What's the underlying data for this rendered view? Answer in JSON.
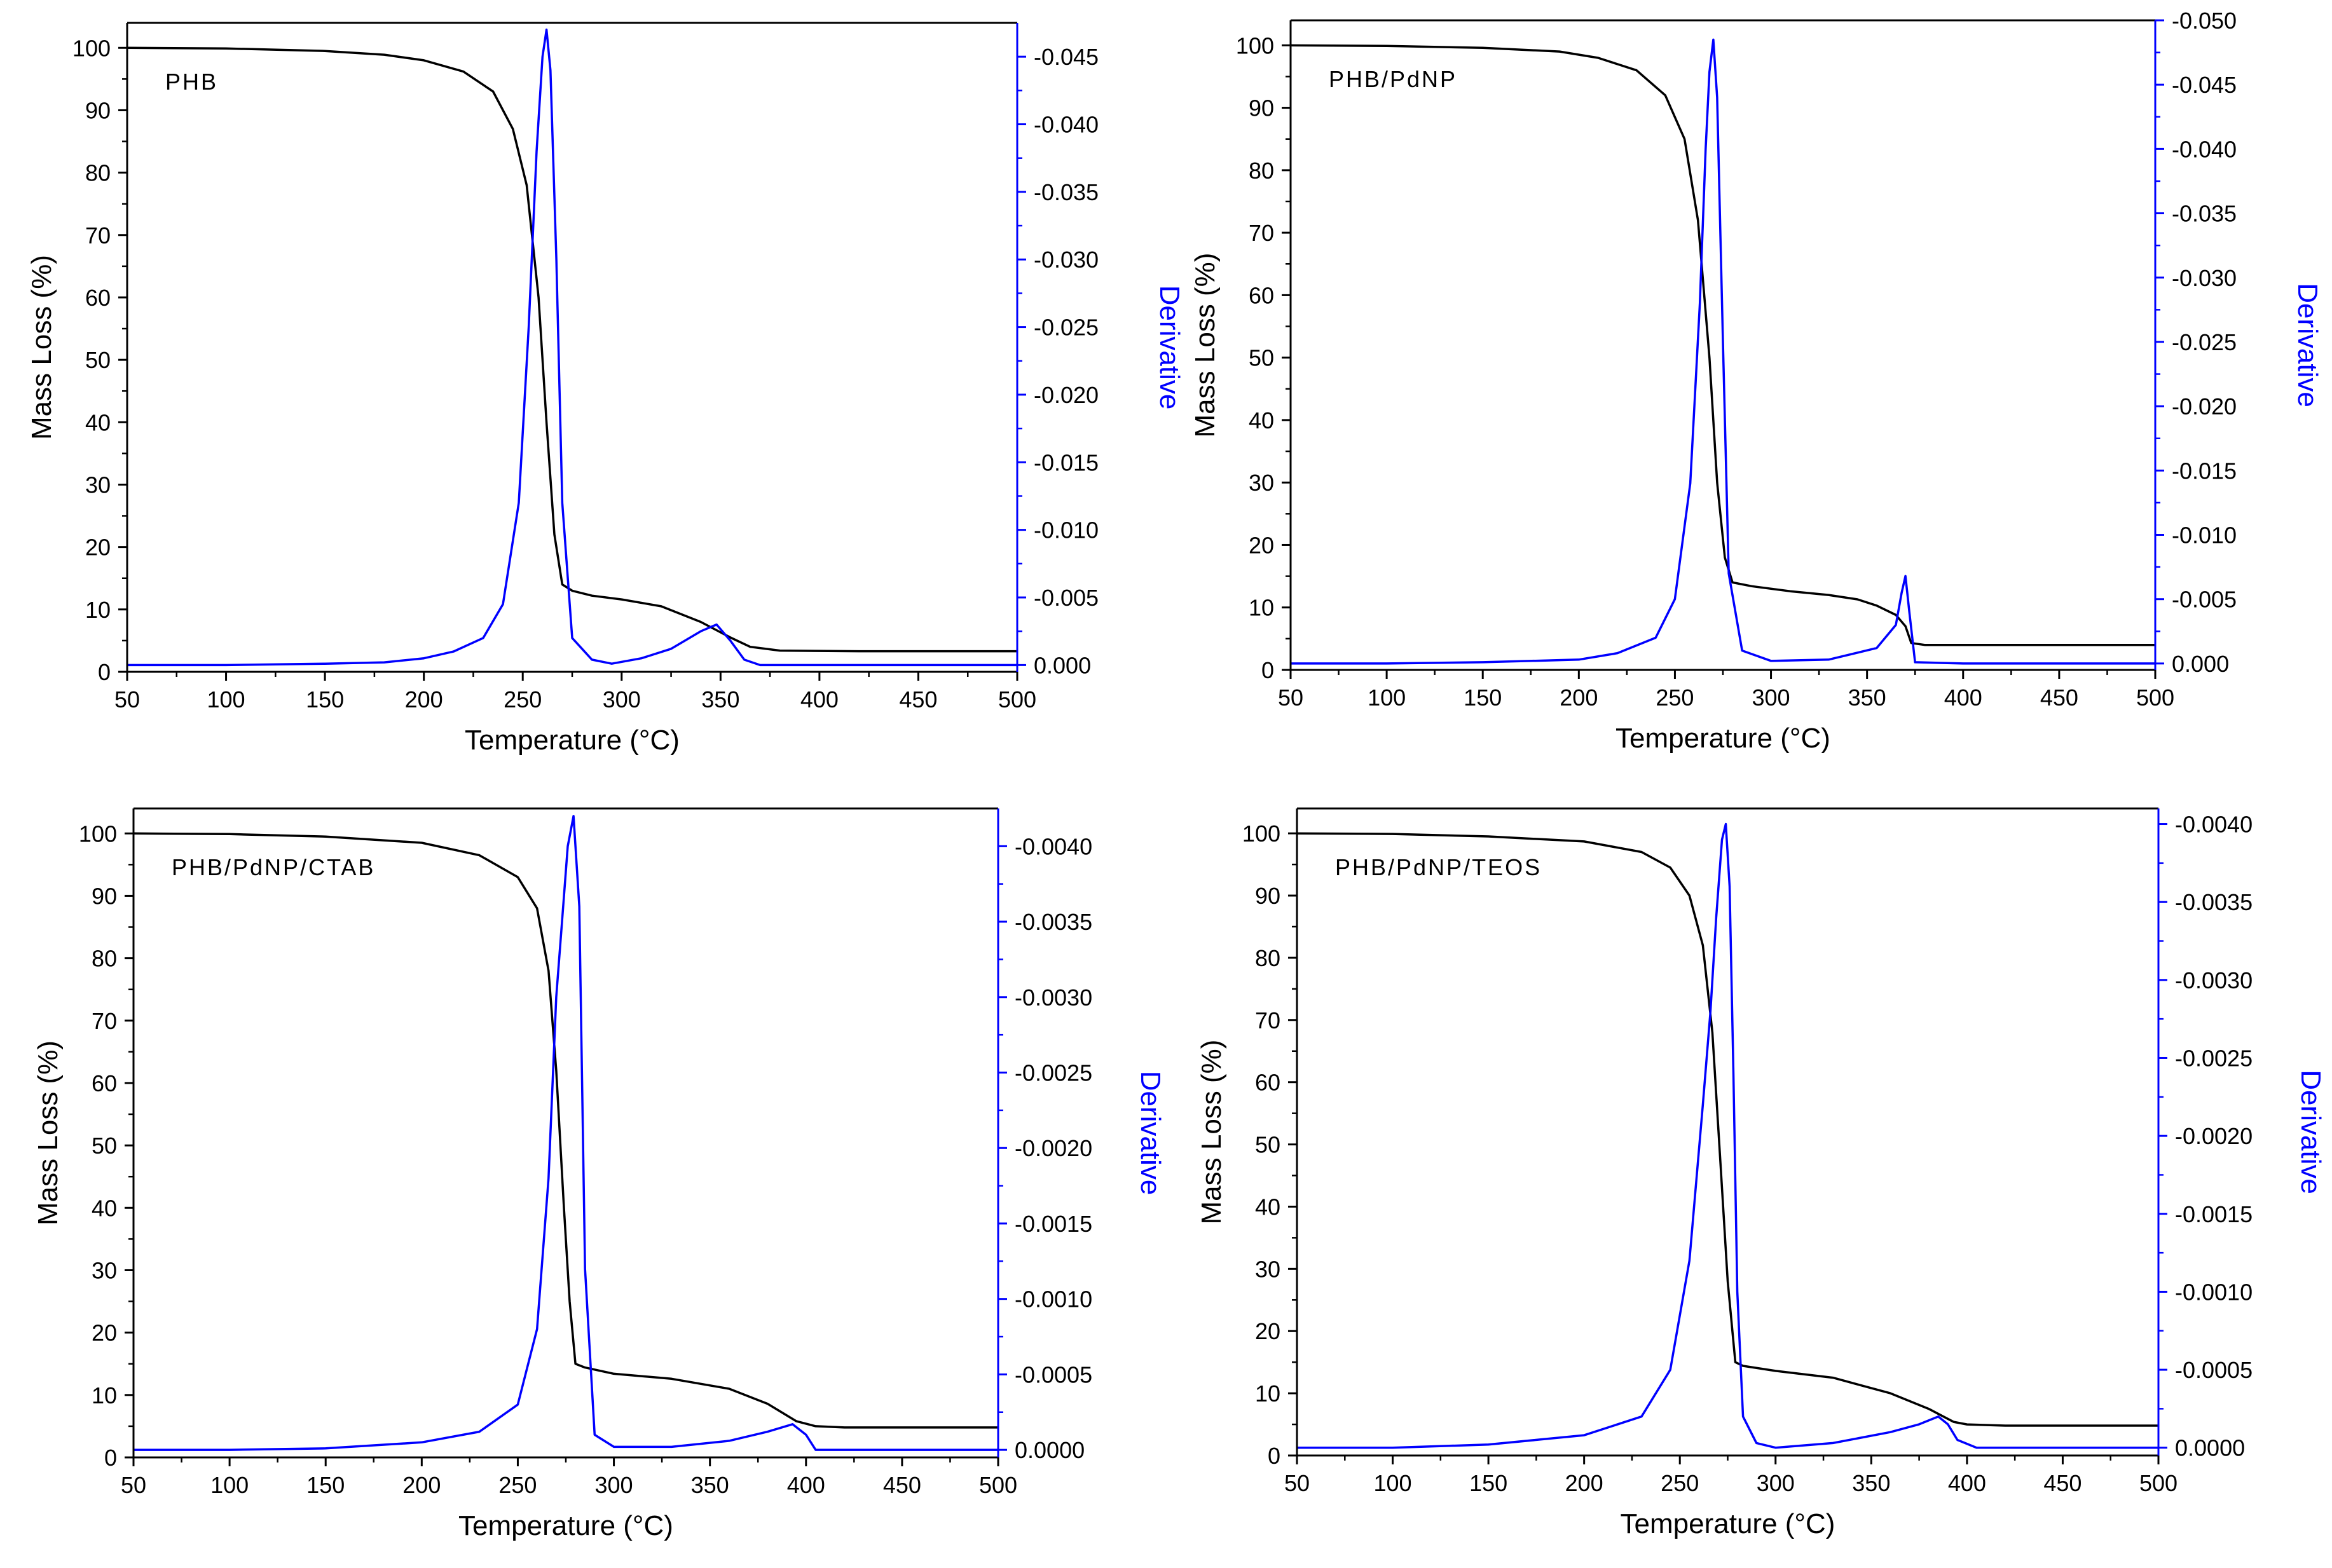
{
  "figure": {
    "colors": {
      "tg": "#000000",
      "dtg": "#0000ff",
      "axis": "#000000",
      "right_axis": "#0000ff"
    }
  },
  "chart_data": [
    {
      "type": "line",
      "label": "PHB",
      "xlabel": "Temperature (°C)",
      "ylabel": "Mass Loss (%)",
      "y2label": "Derivative",
      "xlim": [
        50,
        500
      ],
      "ylim": [
        0,
        104
      ],
      "y2lim": [
        0.0005,
        -0.0475
      ],
      "x_ticks": [
        50,
        100,
        150,
        200,
        250,
        300,
        350,
        400,
        450,
        500
      ],
      "y_ticks": [
        0,
        10,
        20,
        30,
        40,
        50,
        60,
        70,
        80,
        90,
        100
      ],
      "y2_ticks": [
        0.0,
        -0.005,
        -0.01,
        -0.015,
        -0.02,
        -0.025,
        -0.03,
        -0.035,
        -0.04,
        -0.045
      ],
      "y2_tick_labels": [
        "0.000",
        "-0.005",
        "-0.010",
        "-0.015",
        "-0.020",
        "-0.025",
        "-0.030",
        "-0.035",
        "-0.040",
        "-0.045"
      ],
      "grid": false,
      "series": [
        {
          "axis": "left",
          "color": "#000000",
          "x": [
            50,
            100,
            150,
            180,
            200,
            220,
            235,
            245,
            252,
            258,
            262,
            266,
            270,
            275,
            285,
            300,
            320,
            340,
            355,
            365,
            380,
            420,
            500
          ],
          "y": [
            100,
            99.9,
            99.5,
            98.9,
            98,
            96.2,
            93,
            87,
            78,
            60,
            40,
            22,
            14,
            13,
            12.2,
            11.6,
            10.5,
            8,
            5.5,
            4,
            3.4,
            3.3,
            3.3
          ]
        },
        {
          "axis": "right",
          "color": "#0000ff",
          "x": [
            50,
            100,
            150,
            180,
            200,
            215,
            230,
            240,
            248,
            253,
            257,
            260,
            262,
            264,
            267,
            270,
            275,
            285,
            295,
            310,
            325,
            340,
            348,
            355,
            362,
            370,
            400,
            500
          ],
          "y": [
            0,
            0,
            -0.0001,
            -0.0002,
            -0.0005,
            -0.001,
            -0.002,
            -0.0045,
            -0.012,
            -0.025,
            -0.038,
            -0.045,
            -0.047,
            -0.044,
            -0.03,
            -0.012,
            -0.002,
            -0.0004,
            -0.0001,
            -0.0005,
            -0.0012,
            -0.0025,
            -0.003,
            -0.0018,
            -0.0004,
            0,
            0,
            0
          ]
        }
      ]
    },
    {
      "type": "line",
      "label": "PHB/PdNP",
      "xlabel": "Temperature (°C)",
      "ylabel": "Mass Loss (%)",
      "y2label": "Derivative",
      "xlim": [
        50,
        500
      ],
      "ylim": [
        0,
        104
      ],
      "y2lim": [
        0.0005,
        -0.05
      ],
      "x_ticks": [
        50,
        100,
        150,
        200,
        250,
        300,
        350,
        400,
        450,
        500
      ],
      "y_ticks": [
        0,
        10,
        20,
        30,
        40,
        50,
        60,
        70,
        80,
        90,
        100
      ],
      "y2_ticks": [
        0.0,
        -0.005,
        -0.01,
        -0.015,
        -0.02,
        -0.025,
        -0.03,
        -0.035,
        -0.04,
        -0.045,
        -0.05
      ],
      "y2_tick_labels": [
        "0.000",
        "-0.005",
        "-0.010",
        "-0.015",
        "-0.020",
        "-0.025",
        "-0.030",
        "-0.035",
        "-0.040",
        "-0.045",
        "-0.050"
      ],
      "grid": false,
      "series": [
        {
          "axis": "left",
          "color": "#000000",
          "x": [
            50,
            100,
            150,
            190,
            210,
            230,
            245,
            255,
            262,
            268,
            272,
            276,
            280,
            290,
            310,
            330,
            345,
            355,
            365,
            370,
            373,
            380,
            500
          ],
          "y": [
            100,
            99.9,
            99.6,
            99,
            98,
            96,
            92,
            85,
            72,
            50,
            30,
            18,
            14,
            13.4,
            12.6,
            12,
            11.3,
            10.3,
            8.8,
            7,
            4.3,
            4,
            4
          ]
        },
        {
          "axis": "right",
          "color": "#0000ff",
          "x": [
            50,
            100,
            150,
            200,
            220,
            240,
            250,
            258,
            263,
            266,
            268,
            270,
            272,
            275,
            278,
            285,
            300,
            330,
            355,
            365,
            368,
            370,
            372,
            375,
            400,
            500
          ],
          "y": [
            0,
            0,
            -0.0001,
            -0.0003,
            -0.0008,
            -0.002,
            -0.005,
            -0.014,
            -0.028,
            -0.04,
            -0.046,
            -0.0485,
            -0.044,
            -0.025,
            -0.007,
            -0.001,
            -0.0002,
            -0.0003,
            -0.0012,
            -0.003,
            -0.0055,
            -0.0068,
            -0.004,
            -0.0001,
            0,
            0
          ]
        }
      ]
    },
    {
      "type": "line",
      "label": "PHB/PdNP/CTAB",
      "xlabel": "Temperature (°C)",
      "ylabel": "Mass Loss (%)",
      "y2label": "Derivative",
      "xlim": [
        50,
        500
      ],
      "ylim": [
        0,
        104
      ],
      "y2lim": [
        5e-05,
        -0.00425
      ],
      "x_ticks": [
        50,
        100,
        150,
        200,
        250,
        300,
        350,
        400,
        450,
        500
      ],
      "y_ticks": [
        0,
        10,
        20,
        30,
        40,
        50,
        60,
        70,
        80,
        90,
        100
      ],
      "y2_ticks": [
        0.0,
        -0.0005,
        -0.001,
        -0.0015,
        -0.002,
        -0.0025,
        -0.003,
        -0.0035,
        -0.004
      ],
      "y2_tick_labels": [
        "0.0000",
        "-0.0005",
        "-0.0010",
        "-0.0015",
        "-0.0020",
        "-0.0025",
        "-0.0030",
        "-0.0035",
        "-0.0040"
      ],
      "grid": false,
      "series": [
        {
          "axis": "left",
          "color": "#000000",
          "x": [
            50,
            100,
            150,
            200,
            230,
            250,
            260,
            266,
            270,
            274,
            277,
            280,
            285,
            300,
            330,
            360,
            380,
            395,
            405,
            420,
            500
          ],
          "y": [
            100,
            99.9,
            99.5,
            98.5,
            96.5,
            93,
            88,
            78,
            62,
            40,
            25,
            15,
            14.4,
            13.4,
            12.6,
            11,
            8.6,
            5.8,
            5,
            4.8,
            4.8
          ]
        },
        {
          "axis": "right",
          "color": "#0000ff",
          "x": [
            50,
            100,
            150,
            200,
            230,
            250,
            260,
            266,
            270,
            273,
            276,
            279,
            282,
            285,
            290,
            300,
            330,
            360,
            380,
            393,
            400,
            405,
            420,
            500
          ],
          "y": [
            0,
            0,
            -1e-05,
            -5e-05,
            -0.00012,
            -0.0003,
            -0.0008,
            -0.0018,
            -0.003,
            -0.0035,
            -0.004,
            -0.0042,
            -0.0036,
            -0.0012,
            -0.0001,
            -2e-05,
            -2e-05,
            -6e-05,
            -0.00012,
            -0.00017,
            -0.0001,
            0,
            0,
            0
          ]
        }
      ]
    },
    {
      "type": "line",
      "label": "PHB/PdNP/TEOS",
      "xlabel": "Temperature (°C)",
      "ylabel": "Mass Loss (%)",
      "y2label": "Derivative",
      "xlim": [
        50,
        500
      ],
      "ylim": [
        0,
        104
      ],
      "y2lim": [
        5e-05,
        -0.0041
      ],
      "x_ticks": [
        50,
        100,
        150,
        200,
        250,
        300,
        350,
        400,
        450,
        500
      ],
      "y_ticks": [
        0,
        10,
        20,
        30,
        40,
        50,
        60,
        70,
        80,
        90,
        100
      ],
      "y2_ticks": [
        0.0,
        -0.0005,
        -0.001,
        -0.0015,
        -0.002,
        -0.0025,
        -0.003,
        -0.0035,
        -0.004
      ],
      "y2_tick_labels": [
        "0.0000",
        "-0.0005",
        "-0.0010",
        "-0.0015",
        "-0.0020",
        "-0.0025",
        "-0.0030",
        "-0.0035",
        "-0.0040"
      ],
      "grid": false,
      "series": [
        {
          "axis": "left",
          "color": "#000000",
          "x": [
            50,
            100,
            150,
            200,
            230,
            245,
            255,
            262,
            267,
            271,
            275,
            279,
            283,
            300,
            330,
            360,
            380,
            393,
            400,
            420,
            500
          ],
          "y": [
            100,
            99.9,
            99.5,
            98.7,
            97,
            94.5,
            90,
            82,
            68,
            48,
            28,
            15,
            14.4,
            13.6,
            12.5,
            10,
            7.5,
            5.4,
            5,
            4.8,
            4.8
          ]
        },
        {
          "axis": "right",
          "color": "#0000ff",
          "x": [
            50,
            100,
            150,
            200,
            230,
            245,
            255,
            262,
            266,
            269,
            272,
            274,
            276,
            278,
            280,
            283,
            290,
            300,
            330,
            360,
            375,
            385,
            390,
            395,
            405,
            500
          ],
          "y": [
            0,
            0,
            -2e-05,
            -8e-05,
            -0.0002,
            -0.0005,
            -0.0012,
            -0.0022,
            -0.0028,
            -0.0034,
            -0.0039,
            -0.004,
            -0.0036,
            -0.0024,
            -0.001,
            -0.0002,
            -3e-05,
            0,
            -3e-05,
            -0.0001,
            -0.00015,
            -0.0002,
            -0.00015,
            -5e-05,
            0,
            0
          ]
        }
      ]
    }
  ]
}
